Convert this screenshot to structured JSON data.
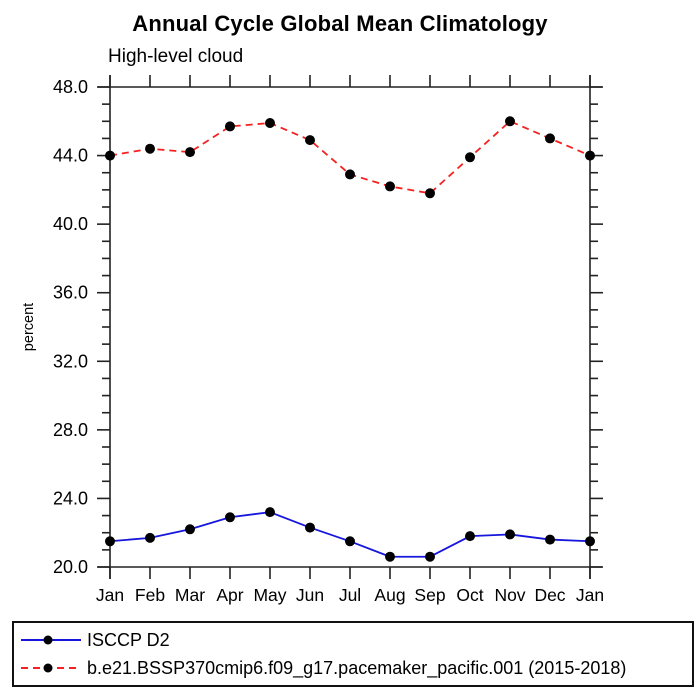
{
  "page": {
    "background": "#ffffff"
  },
  "chart_data": {
    "type": "line",
    "title": "Annual Cycle Global Mean Climatology",
    "subtitle": "High-level cloud",
    "xlabel": "",
    "ylabel": "percent",
    "x_categories": [
      "Jan",
      "Feb",
      "Mar",
      "Apr",
      "May",
      "Jun",
      "Jul",
      "Aug",
      "Sep",
      "Oct",
      "Nov",
      "Dec",
      "Jan"
    ],
    "ylim": [
      20.0,
      48.0
    ],
    "y_major_ticks": [
      20,
      24,
      28,
      32,
      36,
      40,
      44,
      48
    ],
    "y_tick_labels": [
      "20.0",
      "24.0",
      "28.0",
      "32.0",
      "36.0",
      "40.0",
      "44.0",
      "48.0"
    ],
    "y_minor_step": 1.0,
    "grid": false,
    "legend_position": "bottom-left-boxed",
    "axis_color": "#222222",
    "marker_shape": "filled-circle",
    "series": [
      {
        "name": "ISCCP D2",
        "color": "#1616dd",
        "style": "solid",
        "marker_color": "#000000",
        "values": [
          21.5,
          21.7,
          22.2,
          22.9,
          23.2,
          22.3,
          21.5,
          20.6,
          20.6,
          21.8,
          21.9,
          21.6,
          21.5
        ]
      },
      {
        "name": "b.e21.BSSP370cmip6.f09_g17.pacemaker_pacific.001 (2015-2018)",
        "color": "#f52121",
        "style": "dashed",
        "marker_color": "#000000",
        "values": [
          44.0,
          44.4,
          44.2,
          45.7,
          45.9,
          44.9,
          42.9,
          42.2,
          41.8,
          43.9,
          46.0,
          45.0,
          44.0
        ]
      }
    ]
  }
}
